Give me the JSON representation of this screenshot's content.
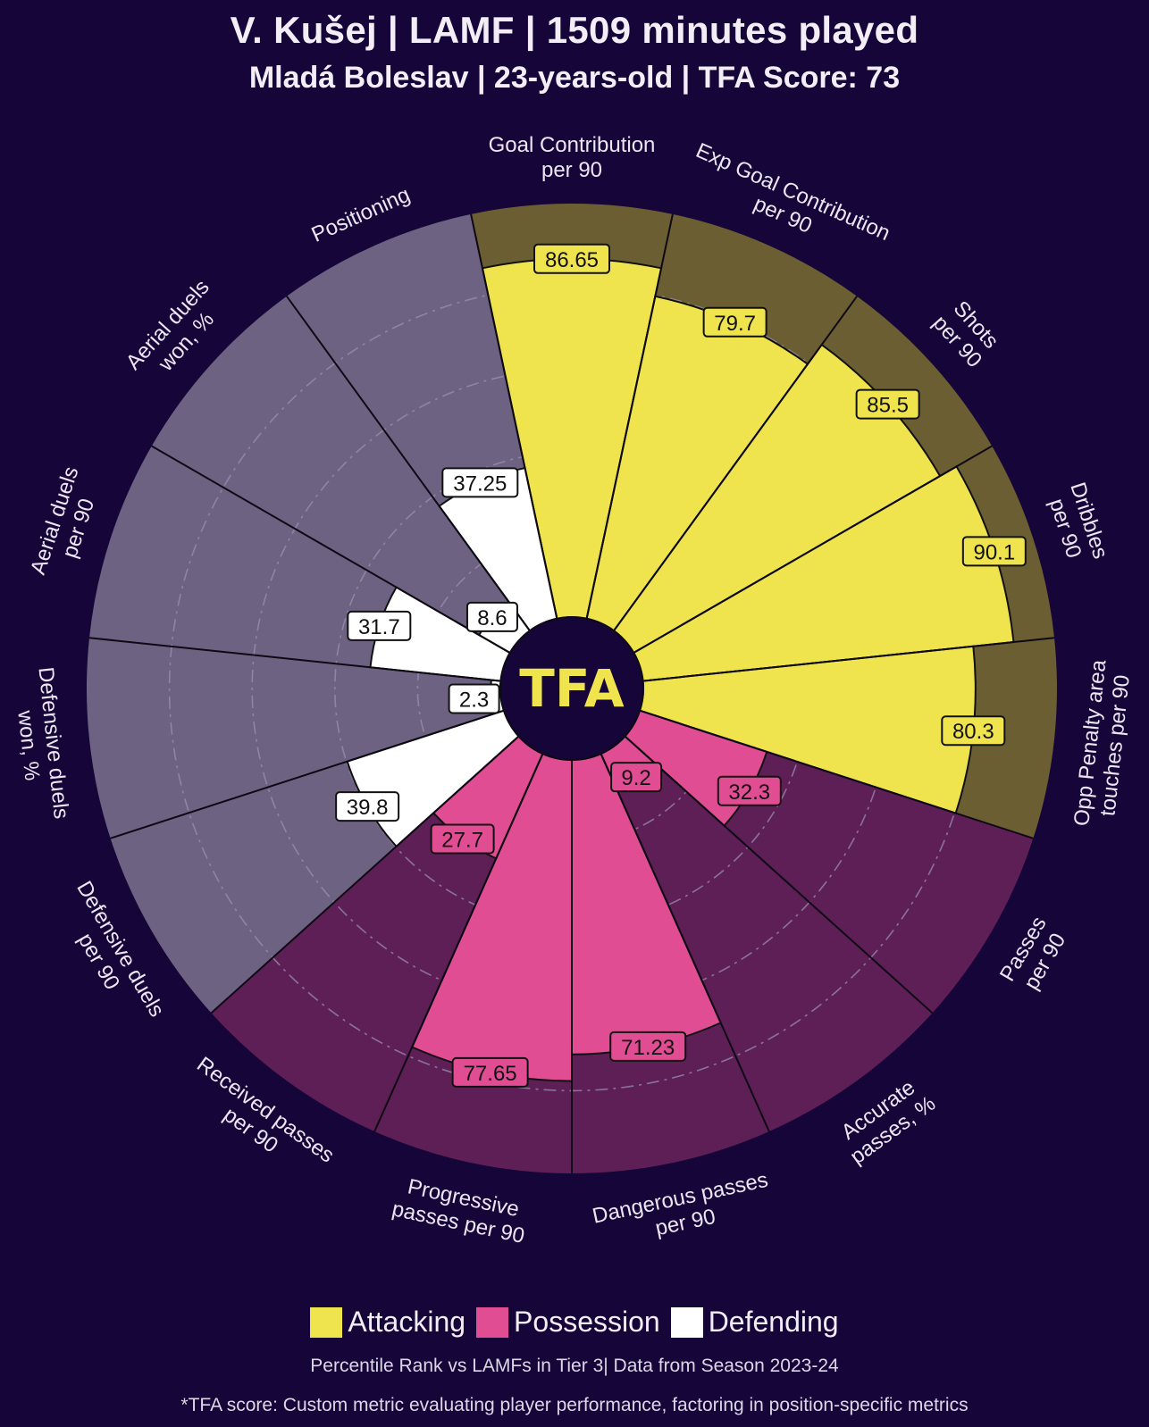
{
  "header": {
    "title": "V. Kušej | LAMF | 1509 minutes played",
    "subtitle": "Mladá Boleslav | 23-years-old | TFA Score: 73"
  },
  "center_logo": "TFA",
  "colors": {
    "background": "#150538",
    "attacking": "#f0e44e",
    "attacking_bg": "#6b5e32",
    "possession": "#e04d93",
    "possession_bg": "#5e1f56",
    "defending": "#ffffff",
    "defending_bg": "#6e6283",
    "grid": "#9a90b0"
  },
  "legend": [
    {
      "label": "Attacking",
      "color": "#f0e44e"
    },
    {
      "label": "Possession",
      "color": "#e04d93"
    },
    {
      "label": "Defending",
      "color": "#ffffff"
    }
  ],
  "footer": {
    "note": "Percentile Rank vs LAMFs in Tier 3| Data from Season 2023-24",
    "disclaimer": "*TFA score: Custom metric evaluating player performance, factoring in position-specific metrics"
  },
  "chart_data": {
    "type": "radar-bar",
    "title": "V. Kušej | LAMF | 1509 minutes played",
    "subtitle": "Mladá Boleslav | 23-years-old | TFA Score: 73",
    "scale": [
      0,
      100
    ],
    "grid": true,
    "legend_position": "bottom-center",
    "categories": [
      {
        "label": [
          "Goal Contribution",
          "per 90"
        ],
        "value": 86.65,
        "group": "Attacking"
      },
      {
        "label": [
          "Exp Goal Contribution",
          "per 90"
        ],
        "value": 79.7,
        "group": "Attacking"
      },
      {
        "label": [
          "Shots",
          "per 90"
        ],
        "value": 85.5,
        "group": "Attacking"
      },
      {
        "label": [
          "Dribbles",
          "per 90"
        ],
        "value": 90.1,
        "group": "Attacking"
      },
      {
        "label": [
          "Opp Penalty area",
          "touches per 90"
        ],
        "value": 80.3,
        "group": "Attacking"
      },
      {
        "label": [
          "Passes",
          "per 90"
        ],
        "value": 32.3,
        "group": "Possession"
      },
      {
        "label": [
          "Accurate",
          "passes, %"
        ],
        "value": 9.2,
        "group": "Possession"
      },
      {
        "label": [
          "Dangerous passes",
          "per 90"
        ],
        "value": 71.23,
        "group": "Possession"
      },
      {
        "label": [
          "Progressive",
          "passes per 90"
        ],
        "value": 77.65,
        "group": "Possession"
      },
      {
        "label": [
          "Received passes",
          "per 90"
        ],
        "value": 27.7,
        "group": "Possession"
      },
      {
        "label": [
          "Defensive duels",
          "per 90"
        ],
        "value": 39.8,
        "group": "Defending"
      },
      {
        "label": [
          "Defensive duels",
          "won, %"
        ],
        "value": 2.3,
        "group": "Defending"
      },
      {
        "label": [
          "Aerial duels",
          "per 90"
        ],
        "value": 31.7,
        "group": "Defending"
      },
      {
        "label": [
          "Aerial duels",
          "won, %"
        ],
        "value": 8.6,
        "group": "Defending"
      },
      {
        "label": [
          "Positioning"
        ],
        "value": 37.25,
        "group": "Defending"
      }
    ]
  }
}
